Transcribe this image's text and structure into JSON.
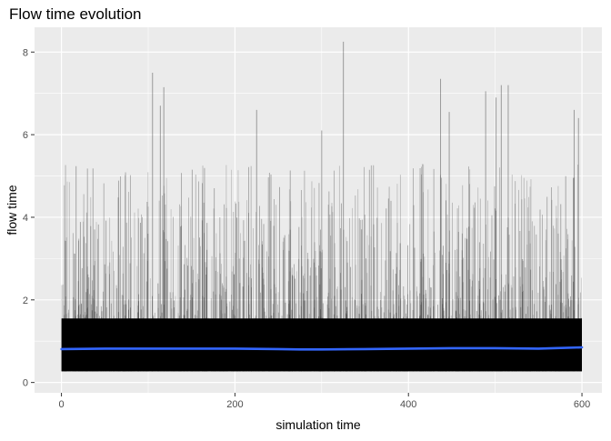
{
  "chart_data": {
    "type": "line",
    "title": "Flow time evolution",
    "xlabel": "simulation time",
    "ylabel": "flow time",
    "xlim": [
      -31,
      623
    ],
    "ylim": [
      -0.25,
      8.6
    ],
    "x_ticks": [
      0,
      200,
      400,
      600
    ],
    "y_ticks": [
      0,
      2,
      4,
      6,
      8
    ],
    "grid": true,
    "raw_series": {
      "description_x_range": [
        0,
        600
      ],
      "baseline": 0.27,
      "typical_max": 4.5,
      "peaks": [
        {
          "x": 105,
          "y": 7.5
        },
        {
          "x": 114,
          "y": 6.7
        },
        {
          "x": 118,
          "y": 7.15
        },
        {
          "x": 225,
          "y": 6.6
        },
        {
          "x": 300,
          "y": 6.1
        },
        {
          "x": 325,
          "y": 8.25
        },
        {
          "x": 437,
          "y": 7.35
        },
        {
          "x": 447,
          "y": 6.55
        },
        {
          "x": 489,
          "y": 7.05
        },
        {
          "x": 501,
          "y": 6.9
        },
        {
          "x": 507,
          "y": 7.2
        },
        {
          "x": 515,
          "y": 7.2
        },
        {
          "x": 591,
          "y": 6.6
        },
        {
          "x": 596,
          "y": 6.4
        }
      ],
      "color": "#000000"
    },
    "smooth_series": {
      "x": [
        0,
        50,
        100,
        150,
        200,
        250,
        275,
        300,
        350,
        400,
        450,
        500,
        550,
        600
      ],
      "y": [
        0.81,
        0.82,
        0.82,
        0.82,
        0.82,
        0.81,
        0.8,
        0.8,
        0.81,
        0.82,
        0.83,
        0.83,
        0.82,
        0.85
      ],
      "color": "#3366FF"
    },
    "panel_background": "#EBEBEB",
    "gridline_color": "#FFFFFF"
  }
}
